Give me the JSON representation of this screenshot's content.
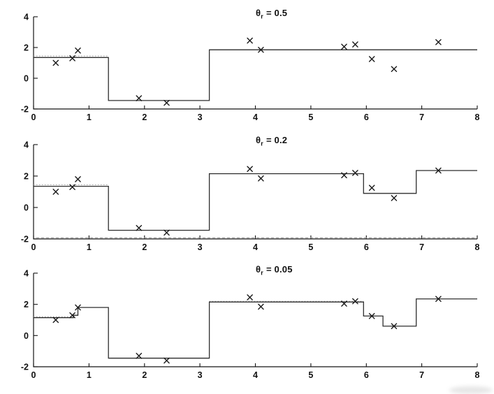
{
  "figure": {
    "background": "#ffffff",
    "axis_color": "#141414",
    "line_color": "#2e2e2e",
    "marker_color": "#1a1a1a",
    "tick_label_color": "#111111",
    "artifact_color": "#999999"
  },
  "chart_data": [
    {
      "type": "line",
      "subtype": "step-regression-fit-with-scatter",
      "title": "θr = 0.5",
      "title_parts": {
        "symbol": "θ",
        "subscript": "r",
        "equals": "= 0.5"
      },
      "xlim": [
        0,
        8
      ],
      "ylim": [
        -2,
        4
      ],
      "xticks": [
        "0",
        "1",
        "2",
        "3",
        "4",
        "5",
        "6",
        "7",
        "8"
      ],
      "yticks": [
        "-2",
        "0",
        "2",
        "4"
      ],
      "grid": false,
      "legend": null,
      "series": [
        {
          "name": "step-fit",
          "type": "step",
          "x": [
            0,
            1.35,
            3.17,
            8
          ],
          "levels": [
            1.35,
            -1.45,
            1.85
          ]
        },
        {
          "name": "data-points",
          "type": "scatter",
          "marker": "x",
          "x": [
            0.4,
            0.7,
            0.8,
            1.9,
            2.4,
            3.9,
            4.1,
            5.6,
            5.8,
            6.1,
            6.5,
            7.3
          ],
          "y": [
            1.0,
            1.3,
            1.8,
            -1.3,
            -1.6,
            2.45,
            1.85,
            2.05,
            2.2,
            1.25,
            0.6,
            2.35
          ]
        }
      ],
      "scan_dotted_overlays": [
        {
          "x1": 0,
          "x2": 1.35,
          "y": 1.45,
          "dash": "1.5 2.5"
        }
      ]
    },
    {
      "type": "line",
      "subtype": "step-regression-fit-with-scatter",
      "title": "θr = 0.2",
      "title_parts": {
        "symbol": "θ",
        "subscript": "r",
        "equals": "= 0.2"
      },
      "xlim": [
        0,
        8
      ],
      "ylim": [
        -2,
        4
      ],
      "xticks": [
        "0",
        "1",
        "2",
        "3",
        "4",
        "5",
        "6",
        "7",
        "8"
      ],
      "yticks": [
        "-2",
        "0",
        "2",
        "4"
      ],
      "grid": false,
      "legend": null,
      "series": [
        {
          "name": "step-fit",
          "type": "step",
          "x": [
            0,
            1.35,
            3.17,
            5.95,
            6.9,
            8
          ],
          "levels": [
            1.35,
            -1.45,
            2.15,
            0.9,
            2.35
          ]
        },
        {
          "name": "data-points",
          "type": "scatter",
          "marker": "x",
          "x": [
            0.4,
            0.7,
            0.8,
            1.9,
            2.4,
            3.9,
            4.1,
            5.6,
            5.8,
            6.1,
            6.5,
            7.3
          ],
          "y": [
            1.0,
            1.3,
            1.8,
            -1.3,
            -1.6,
            2.45,
            1.85,
            2.05,
            2.2,
            1.25,
            0.6,
            2.35
          ]
        }
      ],
      "scan_dotted_overlays": [
        {
          "x1": 0,
          "x2": 1.35,
          "y": 1.45,
          "dash": "1.5 2.5"
        },
        {
          "x1": 0.05,
          "x2": 7.95,
          "y": -1.93,
          "dash": "4 3"
        }
      ]
    },
    {
      "type": "line",
      "subtype": "step-regression-fit-with-scatter",
      "title": "θr = 0.05",
      "title_parts": {
        "symbol": "θ",
        "subscript": "r",
        "equals": "= 0.05"
      },
      "xlim": [
        0,
        8
      ],
      "ylim": [
        -2,
        4
      ],
      "xticks": [
        "0",
        "1",
        "2",
        "3",
        "4",
        "5",
        "6",
        "7",
        "8"
      ],
      "yticks": [
        "-2",
        "0",
        "2",
        "4"
      ],
      "grid": false,
      "legend": null,
      "series": [
        {
          "name": "step-fit",
          "type": "step",
          "x": [
            0,
            0.72,
            0.8,
            1.35,
            3.17,
            5.95,
            6.3,
            6.9,
            8
          ],
          "levels": [
            1.15,
            1.3,
            1.8,
            -1.45,
            2.15,
            1.25,
            0.6,
            2.35
          ]
        },
        {
          "name": "data-points",
          "type": "scatter",
          "marker": "x",
          "x": [
            0.4,
            0.7,
            0.8,
            1.9,
            2.4,
            3.9,
            4.1,
            5.6,
            5.8,
            6.1,
            6.5,
            7.3
          ],
          "y": [
            1.0,
            1.3,
            1.8,
            -1.3,
            -1.6,
            2.45,
            1.85,
            2.05,
            2.2,
            1.25,
            0.6,
            2.35
          ]
        }
      ],
      "scan_dotted_overlays": [
        {
          "x1": 0,
          "x2": 0.72,
          "y": 1.2,
          "dash": "1.5 2.5"
        },
        {
          "x1": 3.17,
          "x2": 5.95,
          "y": 2.2,
          "dash": "1.5 2.5"
        }
      ]
    }
  ]
}
